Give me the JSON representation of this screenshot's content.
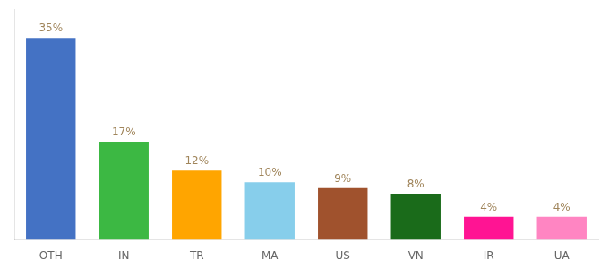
{
  "chart_data": {
    "type": "bar",
    "categories": [
      "OTH",
      "IN",
      "TR",
      "MA",
      "US",
      "VN",
      "IR",
      "UA"
    ],
    "values": [
      35,
      17,
      12,
      10,
      9,
      8,
      4,
      4
    ],
    "value_labels": [
      "35%",
      "17%",
      "12%",
      "10%",
      "9%",
      "8%",
      "4%",
      "4%"
    ],
    "colors": [
      "#4472C4",
      "#3CB843",
      "#FFA500",
      "#87CEEB",
      "#A0522D",
      "#1A6B1A",
      "#FF1493",
      "#FF85C2"
    ],
    "ylim": [
      0,
      40
    ],
    "grid": false,
    "data_labels": true,
    "tick_labels": "x"
  }
}
